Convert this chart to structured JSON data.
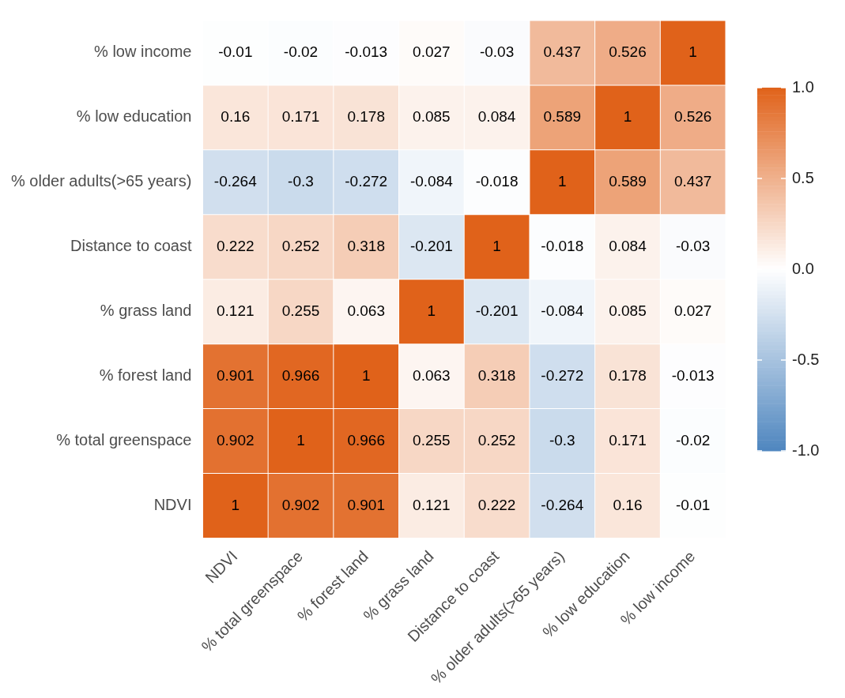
{
  "chart_data": {
    "type": "heatmap",
    "categories": [
      "NDVI",
      "% total greenspace",
      "% forest land",
      "% grass land",
      "Distance to coast",
      "% older adults(>65 years)",
      "% low education",
      "% low income"
    ],
    "y_categories": [
      "% low income",
      "% low education",
      "% older adults(>65 years)",
      "Distance to coast",
      "% grass land",
      "% forest land",
      "% total greenspace",
      "NDVI"
    ],
    "cells": [
      [
        -0.01,
        -0.02,
        -0.013,
        0.027,
        -0.03,
        0.437,
        0.526,
        1
      ],
      [
        0.16,
        0.171,
        0.178,
        0.085,
        0.084,
        0.589,
        1,
        0.526
      ],
      [
        -0.264,
        -0.3,
        -0.272,
        -0.084,
        -0.018,
        1,
        0.589,
        0.437
      ],
      [
        0.222,
        0.252,
        0.318,
        -0.201,
        1,
        -0.018,
        0.084,
        -0.03
      ],
      [
        0.121,
        0.255,
        0.063,
        1,
        -0.201,
        -0.084,
        0.085,
        0.027
      ],
      [
        0.901,
        0.966,
        1,
        0.063,
        0.318,
        -0.272,
        0.178,
        -0.013
      ],
      [
        0.902,
        1,
        0.966,
        0.255,
        0.252,
        -0.3,
        0.171,
        -0.02
      ],
      [
        1,
        0.902,
        0.901,
        0.121,
        0.222,
        -0.264,
        0.16,
        -0.01
      ]
    ],
    "clim": [
      -1,
      1
    ],
    "cticks": [
      {
        "value": 1,
        "label": "1.0"
      },
      {
        "value": 0.5,
        "label": "0.5"
      },
      {
        "value": 0,
        "label": "0.0"
      },
      {
        "value": -0.5,
        "label": "-0.5"
      },
      {
        "value": -1,
        "label": "-1.0"
      }
    ],
    "data_labels": true
  }
}
